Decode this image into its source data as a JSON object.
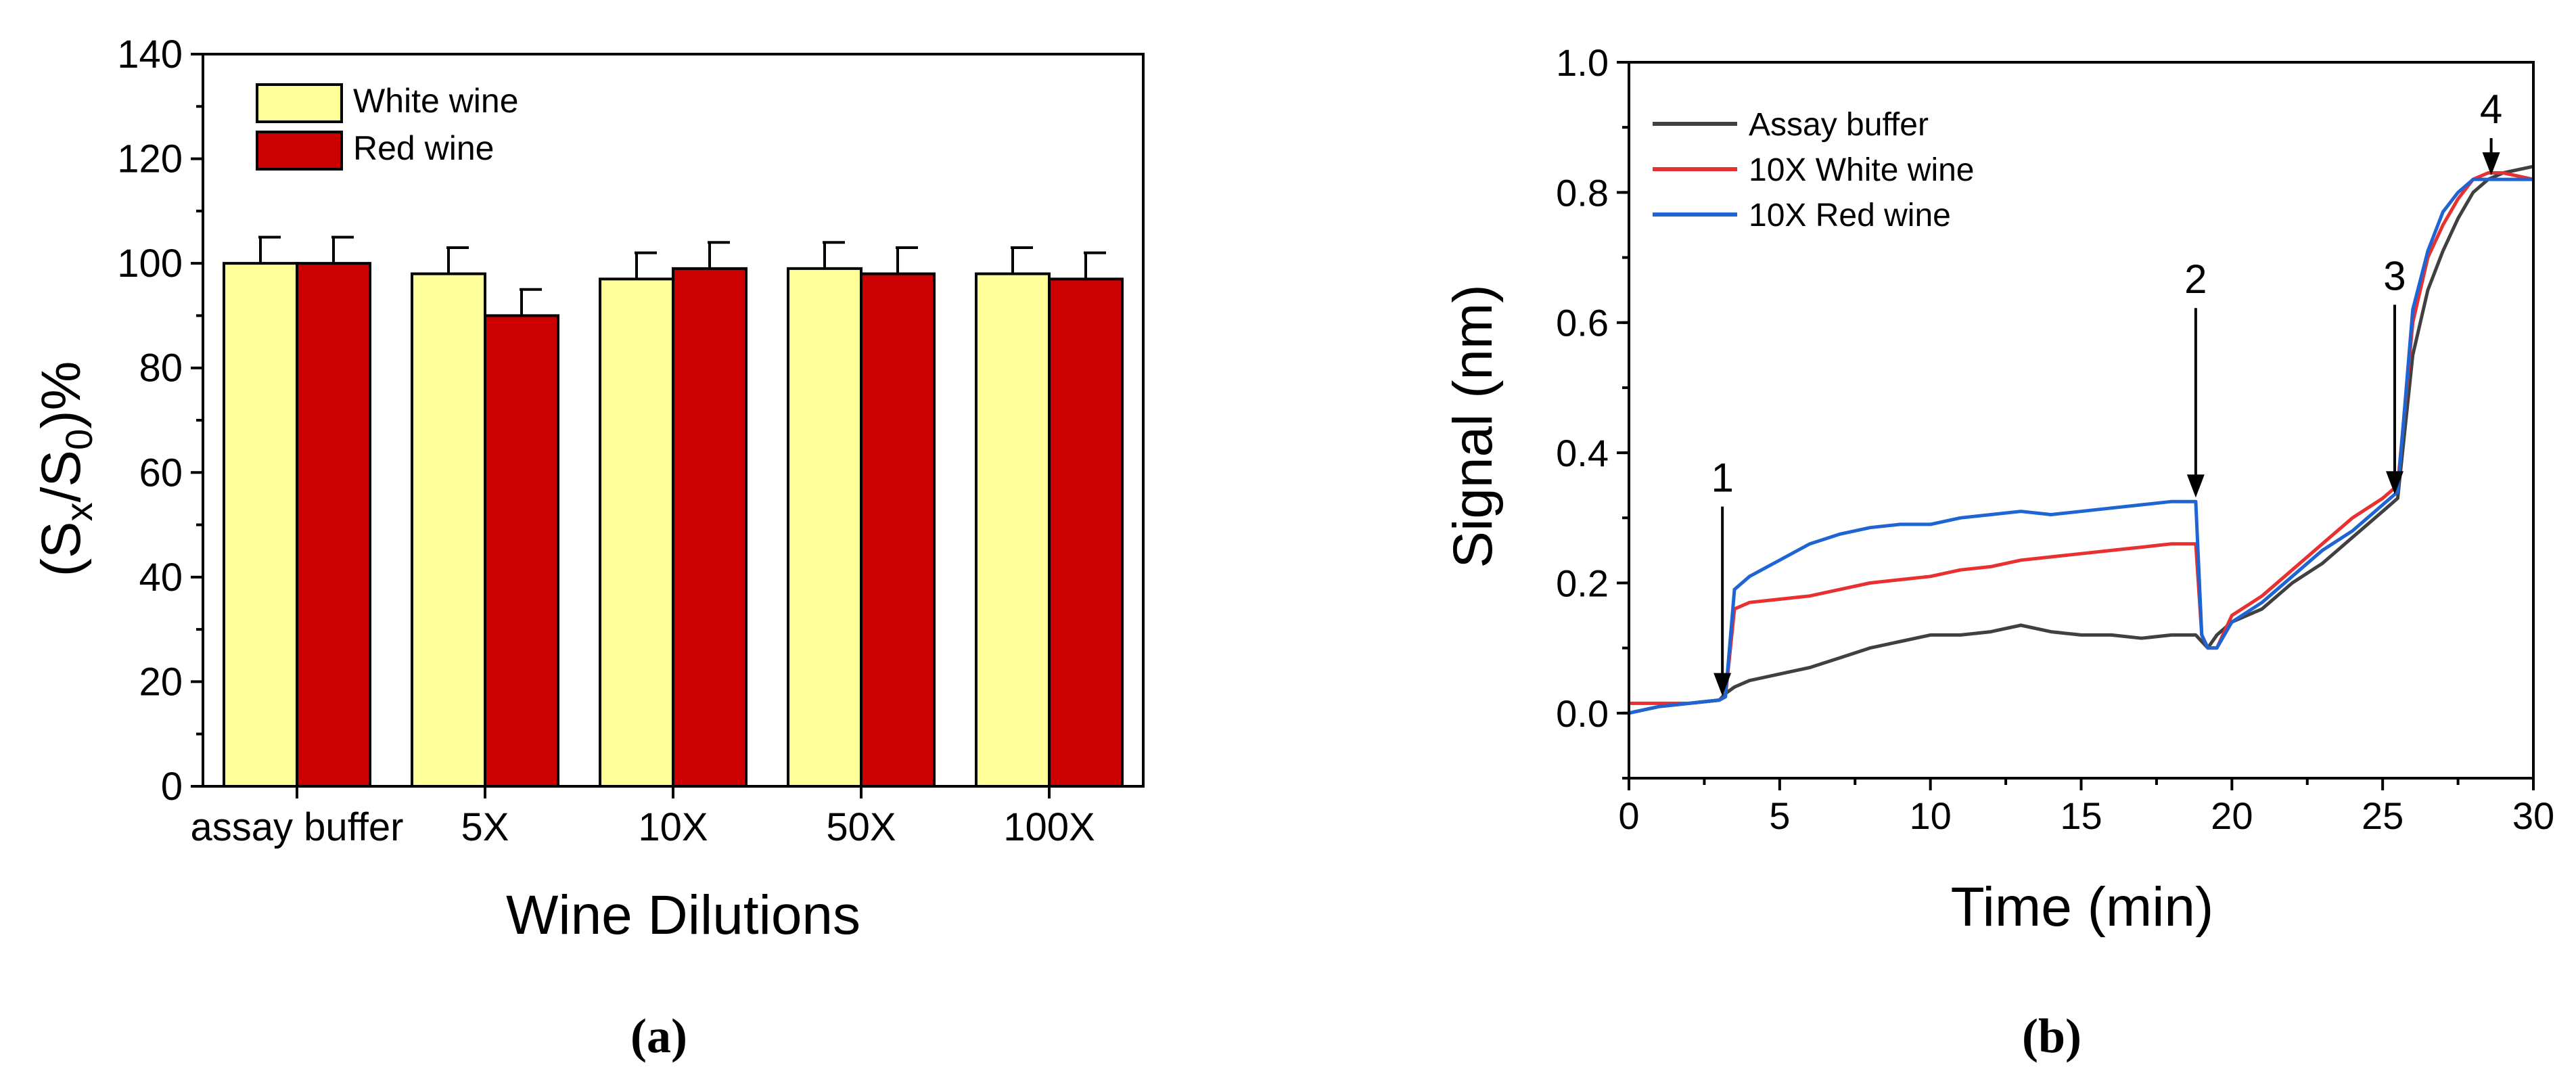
{
  "chart_data": [
    {
      "panel_label": "(a)",
      "type": "bar",
      "title": "",
      "xlabel": "Wine Dilutions",
      "ylabel": "(Sx/S0)%",
      "ylabel_parts": {
        "open": "(S",
        "sub1": "x",
        "mid": "/S",
        "sub2": "0",
        "close": ")%"
      },
      "ylim": [
        0,
        140
      ],
      "yticks": [
        "0",
        "20",
        "40",
        "60",
        "80",
        "100",
        "120",
        "140"
      ],
      "categories": [
        "assay buffer",
        "5X",
        "10X",
        "50X",
        "100X"
      ],
      "series": [
        {
          "name": "White wine",
          "color": "#ffff99",
          "values": [
            100,
            98,
            97,
            99,
            98
          ],
          "errors": [
            5,
            5,
            5,
            5,
            5
          ]
        },
        {
          "name": "Red wine",
          "color": "#cc0000",
          "values": [
            100,
            90,
            99,
            98,
            97
          ],
          "errors": [
            5,
            5,
            5,
            5,
            5
          ]
        }
      ],
      "legend_position": "top-left"
    },
    {
      "panel_label": "(b)",
      "type": "line",
      "title": "",
      "xlabel": "Time (min)",
      "ylabel": "Signal (nm)",
      "xlim": [
        0,
        30
      ],
      "ylim": [
        -0.1,
        1.0
      ],
      "xticks": [
        "0",
        "5",
        "10",
        "15",
        "20",
        "25",
        "30"
      ],
      "yticks": [
        "0.0",
        "0.2",
        "0.4",
        "0.6",
        "0.8",
        "1.0"
      ],
      "series": [
        {
          "name": "Assay buffer",
          "color": "#404040",
          "x": [
            0,
            1,
            2,
            3,
            3.2,
            3.5,
            4,
            5,
            6,
            7,
            8,
            9,
            10,
            11,
            12,
            13,
            14,
            15,
            16,
            17,
            18,
            18.8,
            19,
            19.2,
            19.5,
            20,
            21,
            22,
            23,
            24,
            25,
            25.5,
            26,
            26.5,
            27,
            27.5,
            28,
            28.5,
            29,
            30
          ],
          "y": [
            0.0,
            0.01,
            0.015,
            0.02,
            0.03,
            0.04,
            0.05,
            0.06,
            0.07,
            0.085,
            0.1,
            0.11,
            0.12,
            0.12,
            0.125,
            0.135,
            0.125,
            0.12,
            0.12,
            0.115,
            0.12,
            0.12,
            0.11,
            0.1,
            0.12,
            0.14,
            0.16,
            0.2,
            0.23,
            0.27,
            0.31,
            0.33,
            0.55,
            0.65,
            0.71,
            0.76,
            0.8,
            0.82,
            0.83,
            0.84
          ]
        },
        {
          "name": "10X White wine",
          "color": "#e83030",
          "x": [
            0,
            1,
            2,
            3,
            3.2,
            3.5,
            4,
            5,
            6,
            7,
            8,
            9,
            10,
            11,
            12,
            13,
            14,
            15,
            16,
            17,
            18,
            18.8,
            19,
            19.2,
            19.5,
            20,
            21,
            22,
            23,
            24,
            25,
            25.5,
            26,
            26.5,
            27,
            27.5,
            28,
            28.5,
            29,
            30
          ],
          "y": [
            0.015,
            0.015,
            0.015,
            0.02,
            0.025,
            0.16,
            0.17,
            0.175,
            0.18,
            0.19,
            0.2,
            0.205,
            0.21,
            0.22,
            0.225,
            0.235,
            0.24,
            0.245,
            0.25,
            0.255,
            0.26,
            0.26,
            0.12,
            0.1,
            0.1,
            0.15,
            0.18,
            0.22,
            0.26,
            0.3,
            0.33,
            0.35,
            0.6,
            0.7,
            0.75,
            0.79,
            0.82,
            0.83,
            0.83,
            0.82
          ]
        },
        {
          "name": "10X Red wine",
          "color": "#1e64d2",
          "x": [
            0,
            1,
            2,
            3,
            3.2,
            3.5,
            4,
            5,
            6,
            7,
            8,
            9,
            10,
            11,
            12,
            13,
            14,
            15,
            16,
            17,
            18,
            18.8,
            19,
            19.2,
            19.5,
            20,
            21,
            22,
            23,
            24,
            25,
            25.5,
            26,
            26.5,
            27,
            27.5,
            28,
            28.5,
            29,
            30
          ],
          "y": [
            0.0,
            0.01,
            0.015,
            0.02,
            0.025,
            0.19,
            0.21,
            0.235,
            0.26,
            0.275,
            0.285,
            0.29,
            0.29,
            0.3,
            0.305,
            0.31,
            0.305,
            0.31,
            0.315,
            0.32,
            0.325,
            0.325,
            0.12,
            0.1,
            0.1,
            0.14,
            0.17,
            0.21,
            0.25,
            0.28,
            0.32,
            0.34,
            0.62,
            0.71,
            0.77,
            0.8,
            0.82,
            0.82,
            0.82,
            0.82
          ]
        }
      ],
      "annotations": [
        {
          "label": "1",
          "x": 3.1,
          "y": 0.02
        },
        {
          "label": "2",
          "x": 18.8,
          "y": 0.325
        },
        {
          "label": "3",
          "x": 25.4,
          "y": 0.33
        },
        {
          "label": "4",
          "x": 28.6,
          "y": 0.82
        }
      ],
      "legend_position": "top-left"
    }
  ]
}
